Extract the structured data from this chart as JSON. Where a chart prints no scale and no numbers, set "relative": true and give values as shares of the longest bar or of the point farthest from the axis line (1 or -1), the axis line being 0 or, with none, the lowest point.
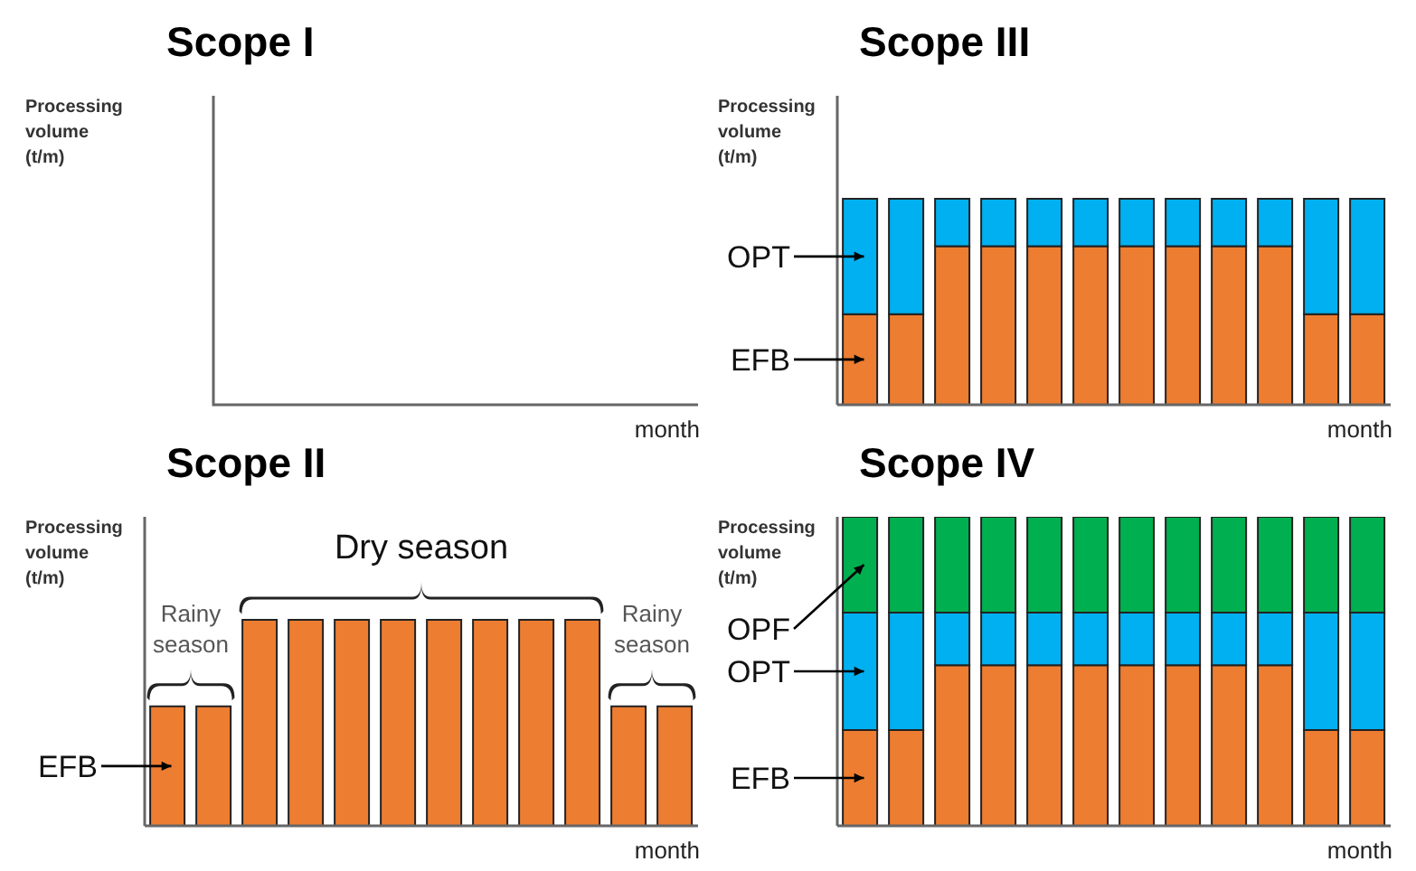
{
  "chart_data": [
    {
      "type": "other",
      "title": "Scope I",
      "ylabel": "Processing volume (t/m)",
      "xlabel": "month"
    },
    {
      "type": "bar",
      "title": "Scope III",
      "ylabel": "Processing volume (t/m)",
      "xlabel": "month",
      "relative": true,
      "stacked": true,
      "categories": [
        null,
        null,
        null,
        null,
        null,
        null,
        null,
        null,
        null,
        null,
        null,
        null
      ],
      "series": [
        {
          "name": "EFB",
          "color": "#ed7d31",
          "values": [
            0.44,
            0.44,
            0.77,
            0.77,
            0.77,
            0.77,
            0.77,
            0.77,
            0.77,
            0.77,
            0.44,
            0.44
          ]
        },
        {
          "name": "OPT",
          "color": "#00b0f0",
          "values": [
            0.56,
            0.56,
            0.23,
            0.23,
            0.23,
            0.23,
            0.23,
            0.23,
            0.23,
            0.23,
            0.56,
            0.56
          ]
        }
      ]
    },
    {
      "type": "bar",
      "title": "Scope II",
      "ylabel": "Processing volume (t/m)",
      "xlabel": "month",
      "relative": true,
      "categories": [
        null,
        null,
        null,
        null,
        null,
        null,
        null,
        null,
        null,
        null,
        null,
        null
      ],
      "series": [
        {
          "name": "EFB",
          "color": "#ed7d31",
          "values": [
            0.58,
            0.58,
            1,
            1,
            1,
            1,
            1,
            1,
            1,
            1,
            0.58,
            0.58
          ]
        }
      ],
      "annotations": [
        "Rainy season",
        "Dry season",
        "Rainy season"
      ]
    },
    {
      "type": "bar",
      "title": "Scope IV",
      "ylabel": "Processing volume (t/m)",
      "xlabel": "month",
      "relative": true,
      "stacked": true,
      "categories": [
        null,
        null,
        null,
        null,
        null,
        null,
        null,
        null,
        null,
        null,
        null,
        null
      ],
      "series": [
        {
          "name": "EFB",
          "color": "#ed7d31",
          "values": [
            0.31,
            0.31,
            0.52,
            0.52,
            0.52,
            0.52,
            0.52,
            0.52,
            0.52,
            0.52,
            0.31,
            0.31
          ]
        },
        {
          "name": "OPT",
          "color": "#00b0f0",
          "values": [
            0.38,
            0.38,
            0.17,
            0.17,
            0.17,
            0.17,
            0.17,
            0.17,
            0.17,
            0.17,
            0.38,
            0.38
          ]
        },
        {
          "name": "OPF",
          "color": "#00b050",
          "values": [
            0.31,
            0.31,
            0.31,
            0.31,
            0.31,
            0.31,
            0.31,
            0.31,
            0.31,
            0.31,
            0.31,
            0.31
          ]
        }
      ]
    }
  ]
}
